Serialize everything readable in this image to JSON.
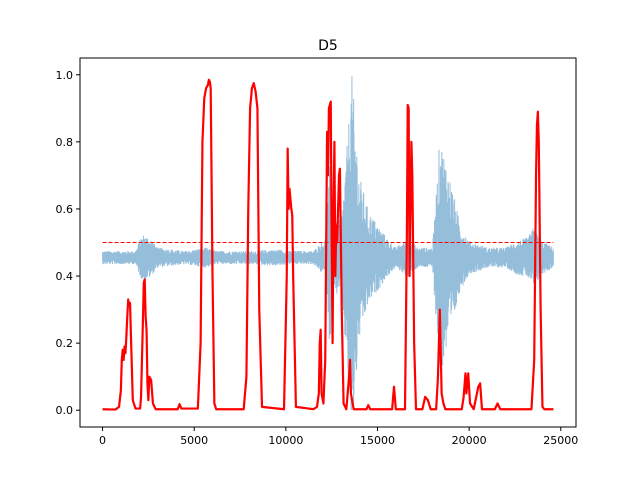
{
  "chart_data": {
    "type": "line",
    "title": "D5",
    "xlabel": "",
    "ylabel": "",
    "xlim": [
      -1230,
      25830
    ],
    "ylim": [
      -0.05,
      1.05
    ],
    "xticks": [
      0,
      5000,
      10000,
      15000,
      20000,
      25000
    ],
    "xtick_labels": [
      "0",
      "5000",
      "10000",
      "15000",
      "20000",
      "25000"
    ],
    "yticks": [
      0.0,
      0.2,
      0.4,
      0.6,
      0.8,
      1.0
    ],
    "ytick_labels": [
      "0.0",
      "0.2",
      "0.4",
      "0.6",
      "0.8",
      "1.0"
    ],
    "grid": false,
    "series": [
      {
        "role": "signal",
        "color": "#8fbad9",
        "baseline": 0.455,
        "x_end": 24600,
        "amplitude_envelope": [
          [
            0,
            0.02
          ],
          [
            1800,
            0.02
          ],
          [
            2000,
            0.05
          ],
          [
            2200,
            0.07
          ],
          [
            2600,
            0.06
          ],
          [
            3000,
            0.03
          ],
          [
            4500,
            0.02
          ],
          [
            5600,
            0.03
          ],
          [
            6200,
            0.02
          ],
          [
            8000,
            0.02
          ],
          [
            9500,
            0.025
          ],
          [
            10200,
            0.02
          ],
          [
            11500,
            0.02
          ],
          [
            12200,
            0.06
          ],
          [
            12400,
            0.28
          ],
          [
            12600,
            0.07
          ],
          [
            12800,
            0.12
          ],
          [
            13000,
            0.1
          ],
          [
            13300,
            0.3
          ],
          [
            13600,
            0.55
          ],
          [
            14000,
            0.25
          ],
          [
            14500,
            0.14
          ],
          [
            15000,
            0.1
          ],
          [
            15500,
            0.06
          ],
          [
            16000,
            0.03
          ],
          [
            16700,
            0.06
          ],
          [
            17200,
            0.03
          ],
          [
            18000,
            0.03
          ],
          [
            18400,
            0.36
          ],
          [
            18700,
            0.3
          ],
          [
            19000,
            0.23
          ],
          [
            19500,
            0.1
          ],
          [
            20000,
            0.05
          ],
          [
            21000,
            0.03
          ],
          [
            22000,
            0.03
          ],
          [
            22600,
            0.05
          ],
          [
            23200,
            0.06
          ],
          [
            23500,
            0.09
          ],
          [
            24000,
            0.05
          ],
          [
            24600,
            0.03
          ]
        ]
      },
      {
        "role": "probability",
        "color": "#ff0000",
        "points": [
          [
            0,
            0.003
          ],
          [
            700,
            0.002
          ],
          [
            900,
            0.01
          ],
          [
            1000,
            0.06
          ],
          [
            1050,
            0.15
          ],
          [
            1100,
            0.18
          ],
          [
            1150,
            0.15
          ],
          [
            1200,
            0.19
          ],
          [
            1250,
            0.17
          ],
          [
            1300,
            0.22
          ],
          [
            1350,
            0.28
          ],
          [
            1400,
            0.33
          ],
          [
            1450,
            0.31
          ],
          [
            1500,
            0.32
          ],
          [
            1550,
            0.22
          ],
          [
            1650,
            0.03
          ],
          [
            1800,
            0.005
          ],
          [
            2050,
            0.005
          ],
          [
            2100,
            0.04
          ],
          [
            2200,
            0.26
          ],
          [
            2250,
            0.38
          ],
          [
            2300,
            0.39
          ],
          [
            2350,
            0.28
          ],
          [
            2400,
            0.24
          ],
          [
            2450,
            0.08
          ],
          [
            2500,
            0.03
          ],
          [
            2550,
            0.1
          ],
          [
            2650,
            0.09
          ],
          [
            2750,
            0.02
          ],
          [
            2900,
            0.003
          ],
          [
            4100,
            0.003
          ],
          [
            4200,
            0.018
          ],
          [
            4300,
            0.005
          ],
          [
            5200,
            0.005
          ],
          [
            5350,
            0.2
          ],
          [
            5450,
            0.8
          ],
          [
            5550,
            0.93
          ],
          [
            5650,
            0.96
          ],
          [
            5750,
            0.97
          ],
          [
            5800,
            0.985
          ],
          [
            5850,
            0.98
          ],
          [
            5900,
            0.96
          ],
          [
            6000,
            0.4
          ],
          [
            6100,
            0.02
          ],
          [
            6200,
            0.003
          ],
          [
            7700,
            0.003
          ],
          [
            7850,
            0.1
          ],
          [
            7950,
            0.6
          ],
          [
            8050,
            0.9
          ],
          [
            8150,
            0.96
          ],
          [
            8250,
            0.975
          ],
          [
            8350,
            0.95
          ],
          [
            8450,
            0.9
          ],
          [
            8550,
            0.3
          ],
          [
            8700,
            0.01
          ],
          [
            9900,
            0.003
          ],
          [
            10050,
            0.4
          ],
          [
            10100,
            0.78
          ],
          [
            10150,
            0.6
          ],
          [
            10200,
            0.66
          ],
          [
            10300,
            0.6
          ],
          [
            10350,
            0.58
          ],
          [
            10400,
            0.4
          ],
          [
            10550,
            0.01
          ],
          [
            11500,
            0.003
          ],
          [
            11700,
            0.01
          ],
          [
            11800,
            0.05
          ],
          [
            11850,
            0.2
          ],
          [
            11900,
            0.24
          ],
          [
            11950,
            0.05
          ],
          [
            12050,
            0.02
          ],
          [
            12150,
            0.15
          ],
          [
            12250,
            0.83
          ],
          [
            12300,
            0.7
          ],
          [
            12350,
            0.9
          ],
          [
            12450,
            0.92
          ],
          [
            12500,
            0.5
          ],
          [
            12550,
            0.2
          ],
          [
            12600,
            0.6
          ],
          [
            12650,
            0.8
          ],
          [
            12700,
            0.4
          ],
          [
            12750,
            0.55
          ],
          [
            12800,
            0.5
          ],
          [
            12900,
            0.7
          ],
          [
            12950,
            0.72
          ],
          [
            13050,
            0.3
          ],
          [
            13150,
            0.02
          ],
          [
            13300,
            0.003
          ],
          [
            13450,
            0.1
          ],
          [
            13500,
            0.15
          ],
          [
            13550,
            0.05
          ],
          [
            13700,
            0.003
          ],
          [
            14400,
            0.003
          ],
          [
            14500,
            0.015
          ],
          [
            14600,
            0.003
          ],
          [
            15800,
            0.003
          ],
          [
            15900,
            0.07
          ],
          [
            16000,
            0.003
          ],
          [
            16500,
            0.003
          ],
          [
            16600,
            0.5
          ],
          [
            16650,
            0.91
          ],
          [
            16700,
            0.9
          ],
          [
            16750,
            0.4
          ],
          [
            16800,
            0.6
          ],
          [
            16850,
            0.8
          ],
          [
            16900,
            0.7
          ],
          [
            17000,
            0.2
          ],
          [
            17100,
            0.003
          ],
          [
            17450,
            0.003
          ],
          [
            17600,
            0.04
          ],
          [
            17750,
            0.03
          ],
          [
            17900,
            0.003
          ],
          [
            18200,
            0.003
          ],
          [
            18300,
            0.1
          ],
          [
            18400,
            0.3
          ],
          [
            18500,
            0.05
          ],
          [
            18600,
            0.02
          ],
          [
            18700,
            0.003
          ],
          [
            19600,
            0.003
          ],
          [
            19700,
            0.04
          ],
          [
            19800,
            0.11
          ],
          [
            19850,
            0.05
          ],
          [
            19950,
            0.11
          ],
          [
            20050,
            0.02
          ],
          [
            20250,
            0.003
          ],
          [
            20500,
            0.07
          ],
          [
            20600,
            0.08
          ],
          [
            20700,
            0.003
          ],
          [
            21400,
            0.003
          ],
          [
            21550,
            0.02
          ],
          [
            21700,
            0.003
          ],
          [
            23400,
            0.003
          ],
          [
            23550,
            0.15
          ],
          [
            23650,
            0.7
          ],
          [
            23700,
            0.85
          ],
          [
            23750,
            0.89
          ],
          [
            23800,
            0.8
          ],
          [
            23900,
            0.3
          ],
          [
            24000,
            0.01
          ],
          [
            24100,
            0.003
          ],
          [
            24600,
            0.003
          ]
        ]
      },
      {
        "role": "threshold",
        "color": "#ff0000",
        "style": "dashed",
        "y": 0.5,
        "x_range": [
          0,
          24600
        ]
      }
    ]
  }
}
